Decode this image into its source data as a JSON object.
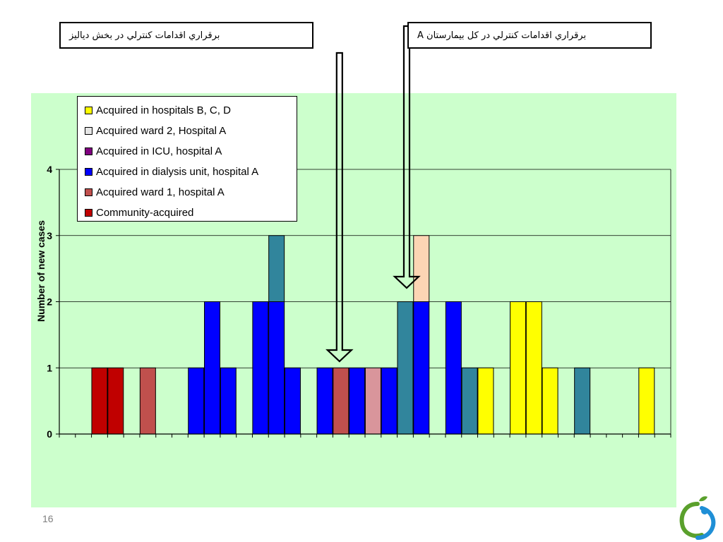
{
  "callouts": {
    "left": "برقراري اقدامات كنترلي در بخش دياليز",
    "right": "برقراري اقدامات كنترلي در كل بيمارستان A"
  },
  "page_number": "16",
  "colors": {
    "background": "#ccffcc",
    "community": "#c00000",
    "ward1": "#c0504d",
    "dialysis": "#0000ff",
    "icu": "#800080",
    "ward2": "#e6e6e6",
    "hospitalsBCD": "#ffff00",
    "teal": "#31859c",
    "rose": "#d9959b",
    "peach": "#fcd5b4"
  },
  "chart_data": {
    "type": "bar",
    "stacked": true,
    "title": "",
    "xlabel": "",
    "ylabel": "Number of new cases",
    "ylim": [
      0,
      4
    ],
    "yticks": [
      0,
      1,
      2,
      3,
      4
    ],
    "grid": true,
    "legend_position": "top-left",
    "legend": [
      {
        "label": "Acquired in hospitals B, C, D",
        "color": "#ffff00"
      },
      {
        "label": "Acquired ward 2, Hospital A",
        "color": "#e6e6e6"
      },
      {
        "label": "Acquired in ICU, hospital A",
        "color": "#800080"
      },
      {
        "label": "Acquired in dialysis unit, hospital A",
        "color": "#0000ff"
      },
      {
        "label": "Acquired ward 1, hospital A",
        "color": "#c0504d"
      },
      {
        "label": "Community-acquired",
        "color": "#c00000"
      }
    ],
    "bar_count": 38,
    "bars": [
      [],
      [],
      [
        {
          "v": 1,
          "c": "#c00000"
        }
      ],
      [
        {
          "v": 1,
          "c": "#c00000"
        }
      ],
      [],
      [
        {
          "v": 1,
          "c": "#c0504d"
        }
      ],
      [],
      [],
      [
        {
          "v": 1,
          "c": "#0000ff"
        }
      ],
      [
        {
          "v": 2,
          "c": "#0000ff"
        }
      ],
      [
        {
          "v": 1,
          "c": "#0000ff"
        }
      ],
      [],
      [
        {
          "v": 2,
          "c": "#0000ff"
        }
      ],
      [
        {
          "v": 2,
          "c": "#0000ff"
        },
        {
          "v": 1,
          "c": "#31859c"
        }
      ],
      [
        {
          "v": 1,
          "c": "#0000ff"
        }
      ],
      [],
      [
        {
          "v": 1,
          "c": "#0000ff"
        }
      ],
      [
        {
          "v": 1,
          "c": "#c0504d"
        }
      ],
      [
        {
          "v": 1,
          "c": "#0000ff"
        }
      ],
      [
        {
          "v": 1,
          "c": "#d9959b"
        }
      ],
      [
        {
          "v": 1,
          "c": "#0000ff"
        }
      ],
      [
        {
          "v": 2,
          "c": "#31859c"
        }
      ],
      [
        {
          "v": 2,
          "c": "#0000ff"
        },
        {
          "v": 1,
          "c": "#fcd5b4"
        }
      ],
      [],
      [
        {
          "v": 2,
          "c": "#0000ff"
        }
      ],
      [
        {
          "v": 1,
          "c": "#31859c"
        }
      ],
      [
        {
          "v": 1,
          "c": "#ffff00"
        }
      ],
      [],
      [
        {
          "v": 2,
          "c": "#ffff00"
        }
      ],
      [
        {
          "v": 2,
          "c": "#ffff00"
        }
      ],
      [
        {
          "v": 1,
          "c": "#ffff00"
        }
      ],
      [],
      [
        {
          "v": 1,
          "c": "#31859c"
        }
      ],
      [],
      [],
      [],
      [
        {
          "v": 1,
          "c": "#ffff00"
        }
      ],
      []
    ],
    "annotations": [
      {
        "type": "arrow",
        "text_ref": "callouts.left",
        "points_to_bar": 17
      },
      {
        "type": "arrow",
        "text_ref": "callouts.right",
        "points_to_bar": 21
      }
    ]
  }
}
